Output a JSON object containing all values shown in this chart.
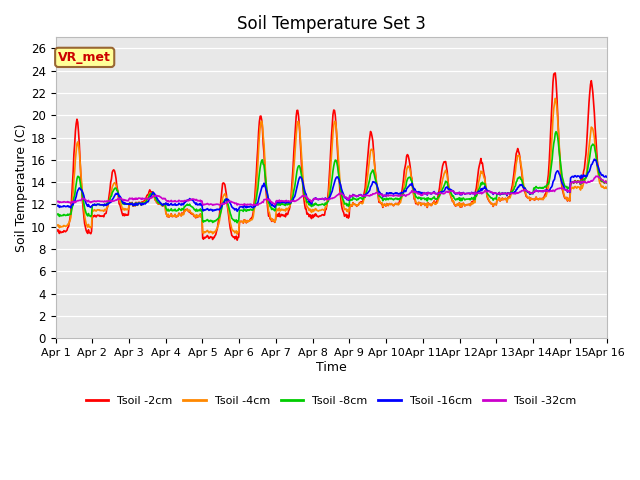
{
  "title": "Soil Temperature Set 3",
  "xlabel": "Time",
  "ylabel": "Soil Temperature (C)",
  "ylim": [
    0,
    27
  ],
  "xlim": [
    0,
    15
  ],
  "background_color": "#e8e8e8",
  "figure_color": "#ffffff",
  "annotation_text": "VR_met",
  "annotation_box_color": "#ffff99",
  "annotation_border_color": "#996633",
  "xtick_labels": [
    "Apr 1",
    "Apr 2",
    "Apr 3",
    "Apr 4",
    "Apr 5",
    "Apr 6",
    "Apr 7",
    "Apr 8",
    "Apr 9",
    "Apr 10",
    "Apr 11",
    "Apr 12",
    "Apr 13",
    "Apr 14",
    "Apr 15",
    "Apr 16"
  ],
  "ytick_labels": [
    0,
    2,
    4,
    6,
    8,
    10,
    12,
    14,
    16,
    18,
    20,
    22,
    24,
    26
  ],
  "series": [
    {
      "label": "Tsoil -2cm",
      "color": "#ff0000",
      "linewidth": 1.2
    },
    {
      "label": "Tsoil -4cm",
      "color": "#ff8800",
      "linewidth": 1.2
    },
    {
      "label": "Tsoil -8cm",
      "color": "#00cc00",
      "linewidth": 1.2
    },
    {
      "label": "Tsoil -16cm",
      "color": "#0000ff",
      "linewidth": 1.2
    },
    {
      "label": "Tsoil -32cm",
      "color": "#cc00cc",
      "linewidth": 1.2
    }
  ]
}
